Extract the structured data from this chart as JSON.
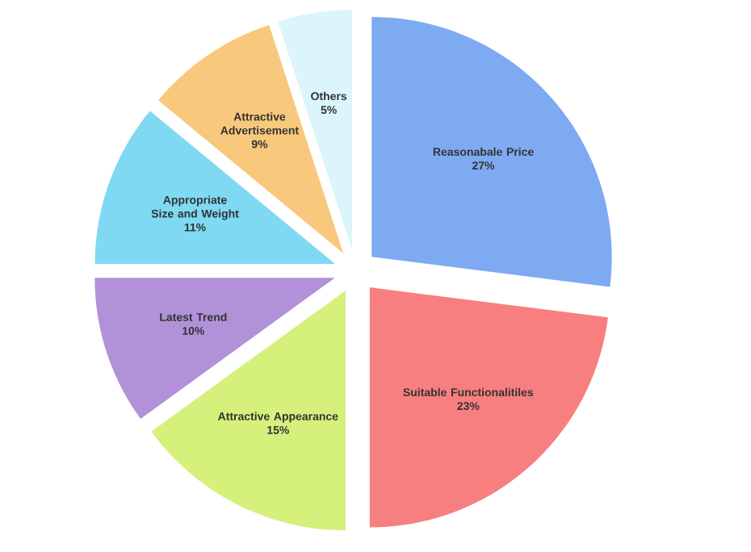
{
  "chart_data": {
    "type": "pie",
    "categories": [
      "Reasonabale Price",
      "Suitable Functionalitiles",
      "Attractive Appearance",
      "Latest Trend",
      "Appropriate Size and Weight",
      "Attractive Advertisement",
      "Others"
    ],
    "values": [
      27,
      23,
      15,
      10,
      11,
      9,
      5
    ],
    "value_labels": [
      "27%",
      "23%",
      "15%",
      "10%",
      "11%",
      "9%",
      "5%"
    ],
    "colors": [
      "#7eaaf2",
      "#f77f7f",
      "#d6f07c",
      "#b192d8",
      "#7fd9f2",
      "#f8c87c",
      "#dcf5fc"
    ]
  }
}
